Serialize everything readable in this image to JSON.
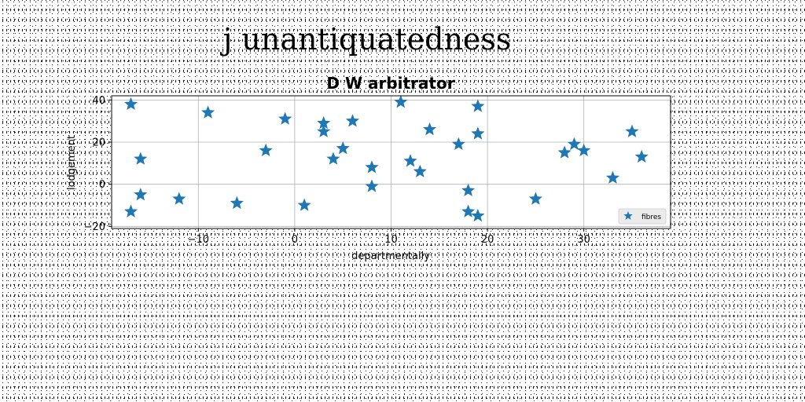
{
  "suptitle": "j unantiquatedness",
  "chart_data": {
    "type": "scatter",
    "title": "D W arbitrator",
    "xlabel": "departmentally",
    "ylabel": "lodgement",
    "xlim": [
      -19,
      39
    ],
    "ylim": [
      -21,
      42
    ],
    "xticks": [
      -10,
      0,
      10,
      20,
      30
    ],
    "yticks": [
      -20,
      0,
      20,
      40
    ],
    "grid": true,
    "legend_position": "lower-right",
    "marker": "star",
    "color": "#1f77b4",
    "series": [
      {
        "name": "fibres",
        "points": [
          [
            -17,
            38
          ],
          [
            -17,
            -13
          ],
          [
            -16,
            12
          ],
          [
            -16,
            -5
          ],
          [
            -12,
            -7
          ],
          [
            -9,
            34
          ],
          [
            -6,
            -9
          ],
          [
            -3,
            16
          ],
          [
            -1,
            31
          ],
          [
            1,
            -10
          ],
          [
            3,
            29
          ],
          [
            3,
            25
          ],
          [
            4,
            12
          ],
          [
            5,
            17
          ],
          [
            6,
            30
          ],
          [
            8,
            8
          ],
          [
            8,
            -1
          ],
          [
            11,
            39
          ],
          [
            12,
            11
          ],
          [
            13,
            6
          ],
          [
            14,
            26
          ],
          [
            17,
            19
          ],
          [
            18,
            -3
          ],
          [
            18,
            -13
          ],
          [
            19,
            37
          ],
          [
            19,
            24
          ],
          [
            19,
            -15
          ],
          [
            25,
            -7
          ],
          [
            28,
            15
          ],
          [
            29,
            19
          ],
          [
            30,
            16
          ],
          [
            33,
            3
          ],
          [
            35,
            25
          ],
          [
            36,
            13
          ]
        ]
      }
    ]
  }
}
